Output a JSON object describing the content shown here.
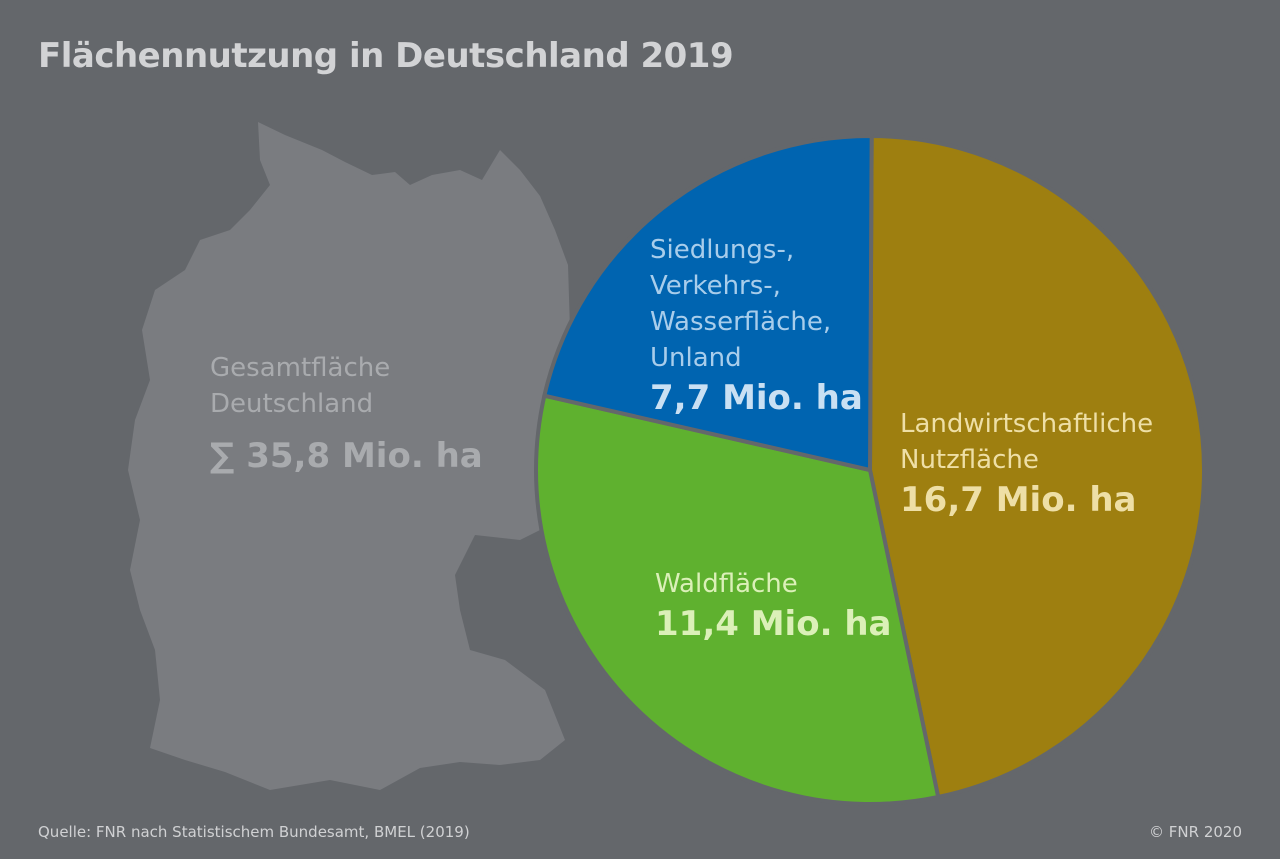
{
  "title": "Flächennutzung in Deutschland 2019",
  "map": {
    "label_lines": [
      "Gesamtfläche",
      "Deutschland"
    ],
    "total": "∑ 35,8 Mio. ha"
  },
  "chart_data": {
    "type": "pie",
    "title": "Flächennutzung in Deutschland 2019",
    "unit": "Mio. ha",
    "total": 35.8,
    "slices": [
      {
        "label_lines": [
          "Landwirtschaftliche",
          "Nutzfläche"
        ],
        "value": 16.7,
        "value_label": "16,7 Mio. ha",
        "color": "#9e7f10"
      },
      {
        "label_lines": [
          "Waldfläche"
        ],
        "value": 11.4,
        "value_label": "11,4 Mio. ha",
        "color": "#5fb12f"
      },
      {
        "label_lines": [
          "Siedlungs-,",
          "Verkehrs-,",
          "Wasserfläche,",
          "Unland"
        ],
        "value": 7.7,
        "value_label": "7,7 Mio. ha",
        "color": "#0064b0"
      }
    ]
  },
  "footer": {
    "source": "Quelle: FNR nach Statistischem Bundesamt, BMEL (2019)",
    "copyright": "© FNR 2020"
  },
  "colors": {
    "background": "#64676b",
    "map_fill": "#7a7c80",
    "title": "#d2d3d5"
  }
}
